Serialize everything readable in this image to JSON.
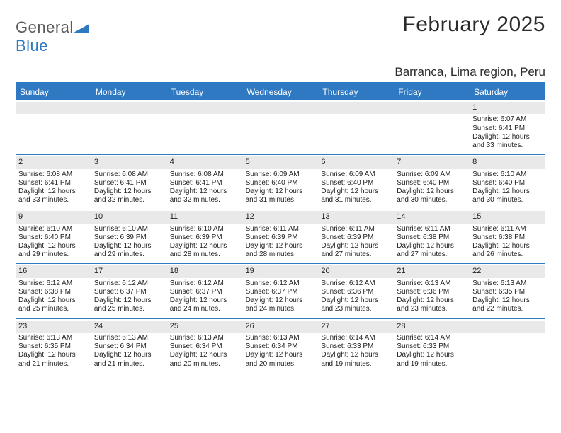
{
  "logo": {
    "word1": "General",
    "word2": "Blue"
  },
  "title": "February 2025",
  "location": "Barranca, Lima region, Peru",
  "colors": {
    "accent": "#2f78c2",
    "band": "#e9e9e9",
    "text": "#2b2b2b",
    "white": "#ffffff"
  },
  "day_headers": [
    "Sunday",
    "Monday",
    "Tuesday",
    "Wednesday",
    "Thursday",
    "Friday",
    "Saturday"
  ],
  "labels": {
    "sunrise": "Sunrise:",
    "sunset": "Sunset:",
    "daylight": "Daylight:"
  },
  "weeks": [
    [
      null,
      null,
      null,
      null,
      null,
      null,
      {
        "n": "1",
        "sunrise": "6:07 AM",
        "sunset": "6:41 PM",
        "daylight": "12 hours and 33 minutes."
      }
    ],
    [
      {
        "n": "2",
        "sunrise": "6:08 AM",
        "sunset": "6:41 PM",
        "daylight": "12 hours and 33 minutes."
      },
      {
        "n": "3",
        "sunrise": "6:08 AM",
        "sunset": "6:41 PM",
        "daylight": "12 hours and 32 minutes."
      },
      {
        "n": "4",
        "sunrise": "6:08 AM",
        "sunset": "6:41 PM",
        "daylight": "12 hours and 32 minutes."
      },
      {
        "n": "5",
        "sunrise": "6:09 AM",
        "sunset": "6:40 PM",
        "daylight": "12 hours and 31 minutes."
      },
      {
        "n": "6",
        "sunrise": "6:09 AM",
        "sunset": "6:40 PM",
        "daylight": "12 hours and 31 minutes."
      },
      {
        "n": "7",
        "sunrise": "6:09 AM",
        "sunset": "6:40 PM",
        "daylight": "12 hours and 30 minutes."
      },
      {
        "n": "8",
        "sunrise": "6:10 AM",
        "sunset": "6:40 PM",
        "daylight": "12 hours and 30 minutes."
      }
    ],
    [
      {
        "n": "9",
        "sunrise": "6:10 AM",
        "sunset": "6:40 PM",
        "daylight": "12 hours and 29 minutes."
      },
      {
        "n": "10",
        "sunrise": "6:10 AM",
        "sunset": "6:39 PM",
        "daylight": "12 hours and 29 minutes."
      },
      {
        "n": "11",
        "sunrise": "6:10 AM",
        "sunset": "6:39 PM",
        "daylight": "12 hours and 28 minutes."
      },
      {
        "n": "12",
        "sunrise": "6:11 AM",
        "sunset": "6:39 PM",
        "daylight": "12 hours and 28 minutes."
      },
      {
        "n": "13",
        "sunrise": "6:11 AM",
        "sunset": "6:39 PM",
        "daylight": "12 hours and 27 minutes."
      },
      {
        "n": "14",
        "sunrise": "6:11 AM",
        "sunset": "6:38 PM",
        "daylight": "12 hours and 27 minutes."
      },
      {
        "n": "15",
        "sunrise": "6:11 AM",
        "sunset": "6:38 PM",
        "daylight": "12 hours and 26 minutes."
      }
    ],
    [
      {
        "n": "16",
        "sunrise": "6:12 AM",
        "sunset": "6:38 PM",
        "daylight": "12 hours and 25 minutes."
      },
      {
        "n": "17",
        "sunrise": "6:12 AM",
        "sunset": "6:37 PM",
        "daylight": "12 hours and 25 minutes."
      },
      {
        "n": "18",
        "sunrise": "6:12 AM",
        "sunset": "6:37 PM",
        "daylight": "12 hours and 24 minutes."
      },
      {
        "n": "19",
        "sunrise": "6:12 AM",
        "sunset": "6:37 PM",
        "daylight": "12 hours and 24 minutes."
      },
      {
        "n": "20",
        "sunrise": "6:12 AM",
        "sunset": "6:36 PM",
        "daylight": "12 hours and 23 minutes."
      },
      {
        "n": "21",
        "sunrise": "6:13 AM",
        "sunset": "6:36 PM",
        "daylight": "12 hours and 23 minutes."
      },
      {
        "n": "22",
        "sunrise": "6:13 AM",
        "sunset": "6:35 PM",
        "daylight": "12 hours and 22 minutes."
      }
    ],
    [
      {
        "n": "23",
        "sunrise": "6:13 AM",
        "sunset": "6:35 PM",
        "daylight": "12 hours and 21 minutes."
      },
      {
        "n": "24",
        "sunrise": "6:13 AM",
        "sunset": "6:34 PM",
        "daylight": "12 hours and 21 minutes."
      },
      {
        "n": "25",
        "sunrise": "6:13 AM",
        "sunset": "6:34 PM",
        "daylight": "12 hours and 20 minutes."
      },
      {
        "n": "26",
        "sunrise": "6:13 AM",
        "sunset": "6:34 PM",
        "daylight": "12 hours and 20 minutes."
      },
      {
        "n": "27",
        "sunrise": "6:14 AM",
        "sunset": "6:33 PM",
        "daylight": "12 hours and 19 minutes."
      },
      {
        "n": "28",
        "sunrise": "6:14 AM",
        "sunset": "6:33 PM",
        "daylight": "12 hours and 19 minutes."
      },
      null
    ]
  ]
}
